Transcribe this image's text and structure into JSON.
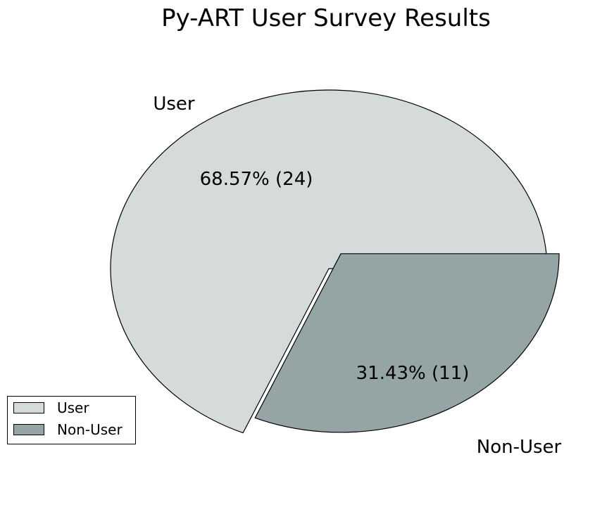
{
  "chart_data": {
    "type": "pie",
    "title": "Py-ART User Survey Results",
    "categories": [
      "User",
      "Non-User"
    ],
    "values": [
      24,
      11
    ],
    "percent_labels": [
      "68.57%  (24)",
      "31.43%  (11)"
    ],
    "colors": [
      "#d5dbdb",
      "#95a5a6"
    ],
    "exploded": [
      false,
      true
    ],
    "legend": {
      "placement": "lower-left",
      "entries": [
        "User",
        "Non-User"
      ]
    }
  }
}
